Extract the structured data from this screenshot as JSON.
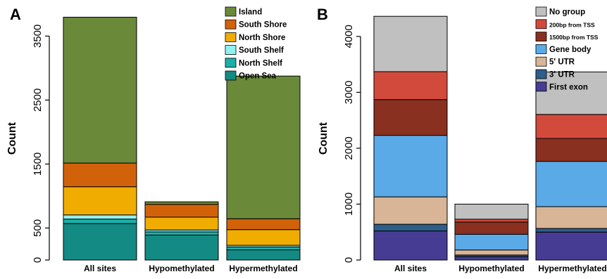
{
  "chart_data": [
    {
      "panel": "A",
      "type": "bar",
      "stacked": true,
      "xlabel": "",
      "ylabel": "Count",
      "ylim": [
        0,
        3800
      ],
      "yticks": [
        0,
        500,
        1500,
        2500,
        3500
      ],
      "categories": [
        "All sites",
        "Hypomethylated",
        "Hypermethylated"
      ],
      "legend_position": "top-right",
      "series": [
        {
          "name": "Open Sea",
          "color": "#138a83",
          "values": [
            570,
            390,
            160
          ]
        },
        {
          "name": "North Shelf",
          "color": "#1ab0a8",
          "values": [
            70,
            50,
            45
          ]
        },
        {
          "name": "South Shelf",
          "color": "#8ff2f0",
          "values": [
            65,
            30,
            25
          ]
        },
        {
          "name": "North Shore",
          "color": "#f0ad00",
          "values": [
            440,
            200,
            245
          ]
        },
        {
          "name": "South Shore",
          "color": "#d2620a",
          "values": [
            370,
            200,
            170
          ]
        },
        {
          "name": "Island",
          "color": "#6a8a3a",
          "values": [
            2280,
            40,
            2230
          ]
        }
      ]
    },
    {
      "panel": "B",
      "type": "bar",
      "stacked": true,
      "xlabel": "",
      "ylabel": "Count",
      "ylim": [
        0,
        4350
      ],
      "yticks": [
        0,
        1000,
        2000,
        3000,
        4000
      ],
      "categories": [
        "All sites",
        "Hypomethylated",
        "Hypermethylated"
      ],
      "legend_position": "top-right",
      "series": [
        {
          "name": "First exon",
          "color": "#473c94",
          "values": [
            520,
            60,
            500
          ]
        },
        {
          "name": "3' UTR",
          "color": "#2d5f8c",
          "values": [
            120,
            30,
            65
          ]
        },
        {
          "name": "5' UTR",
          "color": "#d8b596",
          "values": [
            490,
            90,
            390
          ]
        },
        {
          "name": "Gene body",
          "color": "#5aaae8",
          "values": [
            1100,
            280,
            810
          ]
        },
        {
          "name": "1500bp from TSS",
          "color": "#8a3020",
          "values": [
            640,
            220,
            410
          ]
        },
        {
          "name": "200bp from TSS",
          "color": "#d24a3c",
          "values": [
            500,
            50,
            430
          ]
        },
        {
          "name": "No group",
          "color": "#c0c0c0",
          "values": [
            990,
            270,
            760
          ]
        }
      ]
    }
  ]
}
